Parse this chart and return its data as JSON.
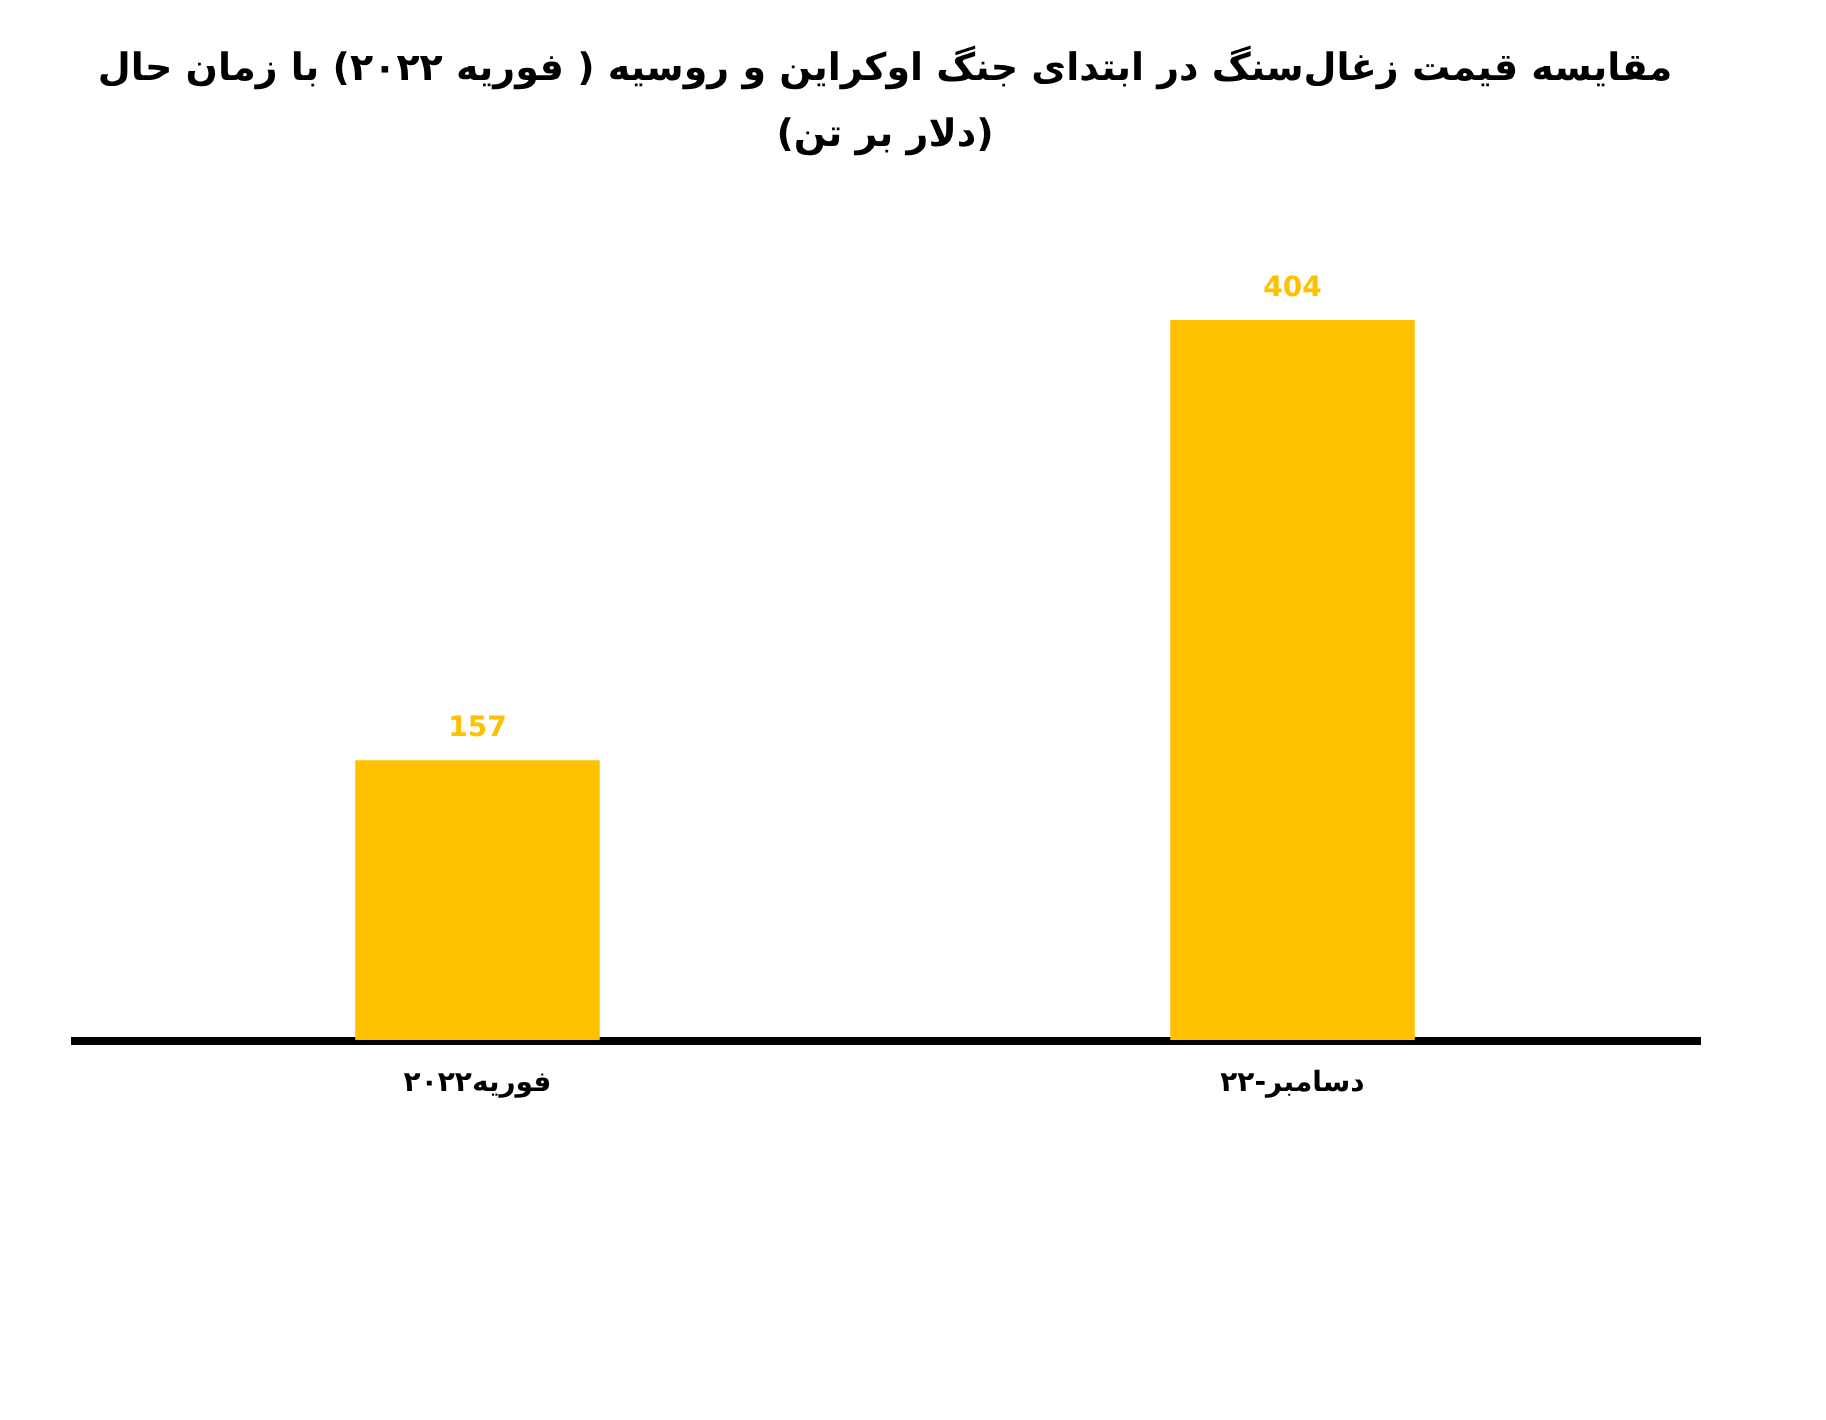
{
  "chart_data": {
    "type": "bar",
    "title": "مقایسه قیمت زغال‌سنگ در ابتدای جنگ اوکراین و روسیه ( فوریه ۲۰۲۲) با زمان حال",
    "subtitle": "(دلار بر تن)",
    "categories": [
      "فوریه۲۰۲۲",
      "دسامبر-۲۲"
    ],
    "values": [
      157,
      404
    ],
    "color": "#ffc000",
    "data_labels": true
  }
}
